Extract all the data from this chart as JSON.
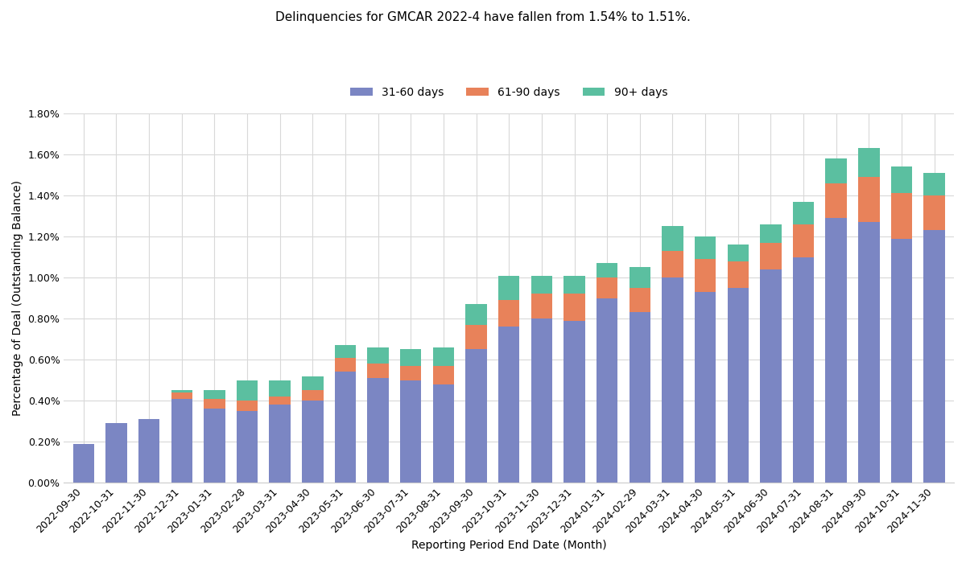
{
  "title": "Delinquencies for GMCAR 2022-4 have fallen from 1.54% to 1.51%.",
  "xlabel": "Reporting Period End Date (Month)",
  "ylabel": "Percentage of Deal (Outstanding Balance)",
  "categories": [
    "2022-09-30",
    "2022-10-31",
    "2022-11-30",
    "2022-12-31",
    "2023-01-31",
    "2023-02-28",
    "2023-03-31",
    "2023-04-30",
    "2023-05-31",
    "2023-06-30",
    "2023-07-31",
    "2023-08-31",
    "2023-09-30",
    "2023-10-31",
    "2023-11-30",
    "2023-12-31",
    "2024-01-31",
    "2024-02-29",
    "2024-03-31",
    "2024-04-30",
    "2024-05-31",
    "2024-06-30",
    "2024-07-31",
    "2024-08-31",
    "2024-09-30",
    "2024-10-31",
    "2024-11-30"
  ],
  "series_31_60": [
    0.0019,
    0.0029,
    0.0031,
    0.0041,
    0.0036,
    0.0035,
    0.0038,
    0.004,
    0.0054,
    0.0051,
    0.005,
    0.0048,
    0.0065,
    0.0076,
    0.008,
    0.0079,
    0.009,
    0.0083,
    0.01,
    0.0093,
    0.0095,
    0.0104,
    0.011,
    0.0129,
    0.0127,
    0.0119,
    0.0123
  ],
  "series_61_90": [
    0.0,
    0.0,
    0.0,
    0.0003,
    0.0005,
    0.0005,
    0.0004,
    0.0005,
    0.0007,
    0.0007,
    0.0007,
    0.0009,
    0.0012,
    0.0013,
    0.0012,
    0.0013,
    0.001,
    0.0012,
    0.0013,
    0.0016,
    0.0013,
    0.0013,
    0.0016,
    0.0017,
    0.0022,
    0.0022,
    0.0017
  ],
  "series_90plus": [
    0.0,
    0.0,
    0.0,
    0.0001,
    0.0004,
    0.001,
    0.0008,
    0.0007,
    0.0006,
    0.0008,
    0.0008,
    0.0009,
    0.001,
    0.0012,
    0.0009,
    0.0009,
    0.0007,
    0.001,
    0.0012,
    0.0011,
    0.0008,
    0.0009,
    0.0011,
    0.0012,
    0.0014,
    0.0013,
    0.0011
  ],
  "color_31_60": "#7b86c3",
  "color_61_90": "#e8825a",
  "color_90plus": "#5bbfa0",
  "ylim_max": 0.018,
  "yticks": [
    0.0,
    0.002,
    0.004,
    0.006,
    0.008,
    0.01,
    0.012,
    0.014,
    0.016,
    0.018
  ],
  "ytick_labels": [
    "0.00%",
    "0.20%",
    "0.40%",
    "0.60%",
    "0.80%",
    "1.00%",
    "1.20%",
    "1.40%",
    "1.60%",
    "1.80%"
  ],
  "bar_width": 0.65,
  "legend_labels": [
    "31-60 days",
    "61-90 days",
    "90+ days"
  ],
  "title_fontsize": 11,
  "axis_label_fontsize": 10,
  "tick_fontsize": 9,
  "legend_fontsize": 10,
  "background_color": "#ffffff",
  "grid_color": "#d8d8d8"
}
